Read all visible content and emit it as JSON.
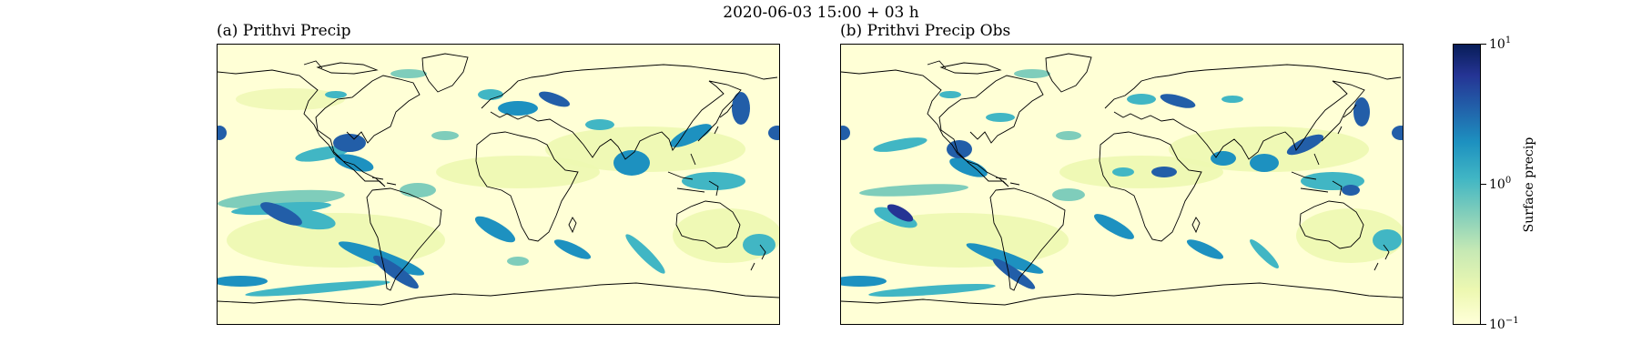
{
  "figure": {
    "suptitle": "2020-06-03 15:00 + 03 h"
  },
  "panels": [
    {
      "title": "(a) Prithvi Precip"
    },
    {
      "title": "(b) Prithvi Precip Obs"
    }
  ],
  "colorbar": {
    "label": "Surface precip",
    "scale": "log",
    "ticks": [
      {
        "base": "10",
        "exp": "1",
        "value": 10
      },
      {
        "base": "10",
        "exp": "0",
        "value": 1
      },
      {
        "base": "10",
        "exp": "−1",
        "value": 0.1
      }
    ],
    "colormap": [
      "#ffffd9",
      "#edf8b1",
      "#c7e9b4",
      "#7fcdbb",
      "#41b6c4",
      "#1d91c0",
      "#225ea8",
      "#253494",
      "#081d58"
    ]
  }
}
